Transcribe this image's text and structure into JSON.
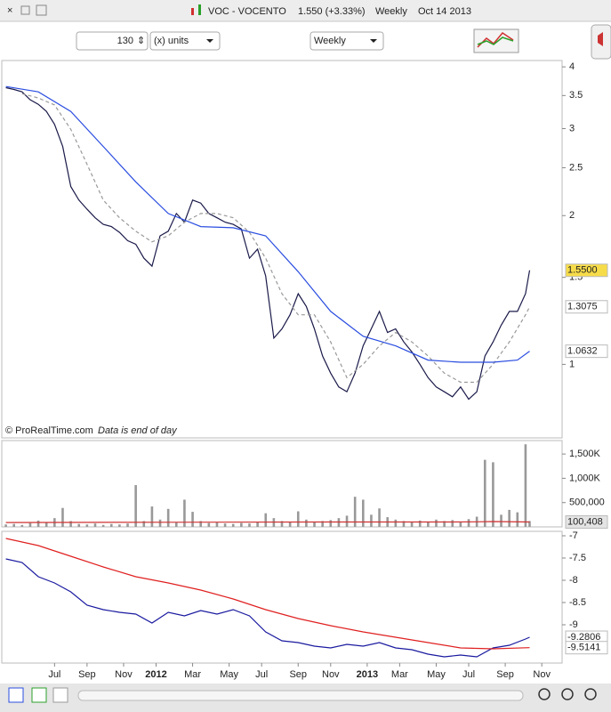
{
  "header": {
    "symbol": "VOC - VOCENTO",
    "quote": "1.550 (+3.33%)",
    "period": "Weekly",
    "date": "Oct 14 2013"
  },
  "toolbar": {
    "units_count": "130",
    "units": "(x) units",
    "timeframe": "Weekly"
  },
  "chart_data": [
    {
      "type": "line",
      "log_scale": true,
      "xlim": [
        -1,
        137
      ],
      "ylim": [
        0.71,
        4.12
      ],
      "yticks": [
        1,
        1.5,
        2,
        2.5,
        3,
        3.5,
        4
      ],
      "annotations": [
        "© ProRealTime.com",
        "Data is end of day"
      ],
      "series": [
        {
          "color": "#1a1a4a",
          "style": "solid",
          "end_label": "1.5500",
          "label_fill": "#f7dc4a",
          "label_text": "#000000",
          "x": [
            0,
            2,
            4,
            6,
            8,
            10,
            12,
            14,
            16,
            18,
            20,
            22,
            24,
            26,
            28,
            30,
            32,
            34,
            36,
            38,
            40,
            42,
            44,
            46,
            48,
            50,
            52,
            54,
            56,
            58,
            60,
            62,
            64,
            66,
            68,
            70,
            72,
            74,
            76,
            78,
            80,
            82,
            84,
            86,
            88,
            90,
            92,
            94,
            96,
            98,
            100,
            102,
            104,
            106,
            108,
            110,
            112,
            114,
            116,
            118,
            120,
            122,
            124,
            126,
            128,
            129
          ],
          "values": [
            3.63,
            3.6,
            3.56,
            3.43,
            3.36,
            3.25,
            3.06,
            2.76,
            2.29,
            2.15,
            2.06,
            1.98,
            1.92,
            1.9,
            1.85,
            1.78,
            1.75,
            1.64,
            1.58,
            1.82,
            1.86,
            2.02,
            1.94,
            2.15,
            2.12,
            2.02,
            1.98,
            1.94,
            1.92,
            1.88,
            1.64,
            1.71,
            1.51,
            1.13,
            1.18,
            1.26,
            1.39,
            1.31,
            1.18,
            1.04,
            0.96,
            0.9,
            0.88,
            0.96,
            1.09,
            1.18,
            1.28,
            1.16,
            1.18,
            1.11,
            1.06,
            1.0,
            0.94,
            0.9,
            0.88,
            0.86,
            0.9,
            0.85,
            0.88,
            1.04,
            1.11,
            1.2,
            1.28,
            1.28,
            1.39,
            1.55
          ]
        },
        {
          "color": "#999999",
          "style": "dashed",
          "end_label": "1.3075",
          "label_fill": "#ffffff",
          "label_text": "#999999",
          "x": [
            4,
            8,
            12,
            16,
            20,
            24,
            28,
            32,
            36,
            40,
            44,
            48,
            52,
            56,
            60,
            64,
            68,
            72,
            76,
            80,
            84,
            88,
            92,
            96,
            100,
            104,
            108,
            112,
            116,
            120,
            124,
            128,
            129
          ],
          "values": [
            3.53,
            3.46,
            3.35,
            2.99,
            2.54,
            2.15,
            1.98,
            1.86,
            1.77,
            1.82,
            1.94,
            2.02,
            2.02,
            1.98,
            1.85,
            1.64,
            1.39,
            1.26,
            1.26,
            1.11,
            0.94,
            1.0,
            1.09,
            1.16,
            1.11,
            1.04,
            0.96,
            0.92,
            0.92,
            1.0,
            1.11,
            1.26,
            1.3075
          ]
        },
        {
          "color": "#2a4de0",
          "style": "solid",
          "end_label": "1.0632",
          "label_fill": "#ffffff",
          "label_text": "#2a4de0",
          "x": [
            0,
            8,
            16,
            24,
            32,
            40,
            48,
            56,
            64,
            72,
            80,
            88,
            96,
            104,
            112,
            120,
            126,
            129
          ],
          "values": [
            3.65,
            3.56,
            3.25,
            2.76,
            2.34,
            2.02,
            1.9,
            1.89,
            1.82,
            1.54,
            1.28,
            1.14,
            1.09,
            1.02,
            1.01,
            1.01,
            1.02,
            1.0632
          ]
        }
      ]
    },
    {
      "type": "bar",
      "xlim": [
        -1,
        137
      ],
      "ylim": [
        0,
        1777000
      ],
      "color": "#999999",
      "yticks": [
        {
          "value": 500000,
          "label": "500,000"
        },
        {
          "value": 1000000,
          "label": "1,000K"
        },
        {
          "value": 1500000,
          "label": "1,500K"
        }
      ],
      "x": [
        0,
        2,
        4,
        6,
        8,
        10,
        12,
        14,
        16,
        18,
        20,
        22,
        24,
        26,
        28,
        30,
        32,
        34,
        36,
        38,
        40,
        42,
        44,
        46,
        48,
        50,
        52,
        54,
        56,
        58,
        60,
        62,
        64,
        66,
        68,
        70,
        72,
        74,
        76,
        78,
        80,
        82,
        84,
        86,
        88,
        90,
        92,
        94,
        96,
        98,
        100,
        102,
        104,
        106,
        108,
        110,
        112,
        114,
        116,
        118,
        120,
        122,
        124,
        126,
        128,
        129
      ],
      "values": [
        50000,
        60000,
        40000,
        80000,
        130000,
        90000,
        180000,
        390000,
        120000,
        60000,
        50000,
        70000,
        40000,
        60000,
        50000,
        70000,
        860000,
        120000,
        420000,
        150000,
        370000,
        100000,
        560000,
        310000,
        120000,
        80000,
        90000,
        70000,
        60000,
        80000,
        70000,
        100000,
        280000,
        180000,
        120000,
        100000,
        320000,
        150000,
        100000,
        120000,
        140000,
        180000,
        230000,
        620000,
        560000,
        250000,
        380000,
        200000,
        150000,
        120000,
        100000,
        130000,
        110000,
        150000,
        120000,
        140000,
        110000,
        160000,
        210000,
        1380000,
        1330000,
        250000,
        350000,
        300000,
        1700000,
        120000
      ],
      "series": [
        {
          "color": "#d03030",
          "style": "solid",
          "end_label": "100,408",
          "label_fill": "#e4e4e4",
          "label_text": "#666666",
          "x": [
            0,
            40,
            80,
            110,
            116,
            120,
            129
          ],
          "values": [
            90000,
            95000,
            100000,
            100000,
            105000,
            110000,
            100408
          ]
        }
      ]
    },
    {
      "type": "line",
      "xlim": [
        -1,
        137
      ],
      "ylim": [
        -9.86,
        -6.9
      ],
      "yticks": [
        -7,
        -7.5,
        -8,
        -8.5,
        -9
      ],
      "xticks": [
        {
          "value": 12,
          "label": "Jul"
        },
        {
          "value": 20,
          "label": "Sep"
        },
        {
          "value": 29,
          "label": "Nov"
        },
        {
          "value": 37,
          "label": "2012"
        },
        {
          "value": 46,
          "label": "Mar"
        },
        {
          "value": 55,
          "label": "May"
        },
        {
          "value": 63,
          "label": "Jul"
        },
        {
          "value": 72,
          "label": "Sep"
        },
        {
          "value": 80,
          "label": "Nov"
        },
        {
          "value": 89,
          "label": "2013"
        },
        {
          "value": 97,
          "label": "Mar"
        },
        {
          "value": 106,
          "label": "May"
        },
        {
          "value": 114,
          "label": "Jul"
        },
        {
          "value": 123,
          "label": "Sep"
        },
        {
          "value": 132,
          "label": "Nov"
        }
      ],
      "series": [
        {
          "color": "#1a1aa0",
          "style": "solid",
          "end_label": "-9.2806",
          "label_fill": "#ffffff",
          "label_text": "#2a4de0",
          "x": [
            0,
            4,
            8,
            12,
            16,
            20,
            24,
            28,
            32,
            36,
            40,
            44,
            48,
            52,
            56,
            60,
            64,
            68,
            72,
            76,
            80,
            84,
            88,
            92,
            96,
            100,
            104,
            108,
            112,
            116,
            120,
            124,
            128,
            129
          ],
          "values": [
            -7.52,
            -7.6,
            -7.92,
            -8.06,
            -8.26,
            -8.56,
            -8.66,
            -8.72,
            -8.76,
            -8.96,
            -8.72,
            -8.8,
            -8.68,
            -8.76,
            -8.66,
            -8.8,
            -9.16,
            -9.36,
            -9.4,
            -9.48,
            -9.52,
            -9.44,
            -9.48,
            -9.4,
            -9.52,
            -9.56,
            -9.66,
            -9.72,
            -9.68,
            -9.72,
            -9.52,
            -9.46,
            -9.32,
            -9.2806
          ]
        },
        {
          "color": "#e02020",
          "style": "solid",
          "end_label": "-9.5141",
          "label_fill": "#ffffff",
          "label_text": "#e02020",
          "x": [
            0,
            8,
            16,
            24,
            32,
            40,
            48,
            56,
            64,
            72,
            80,
            88,
            96,
            104,
            112,
            120,
            129
          ],
          "values": [
            -7.06,
            -7.22,
            -7.46,
            -7.7,
            -7.92,
            -8.06,
            -8.22,
            -8.42,
            -8.66,
            -8.86,
            -9.02,
            -9.16,
            -9.28,
            -9.4,
            -9.52,
            -9.54,
            -9.5141
          ]
        }
      ]
    }
  ]
}
